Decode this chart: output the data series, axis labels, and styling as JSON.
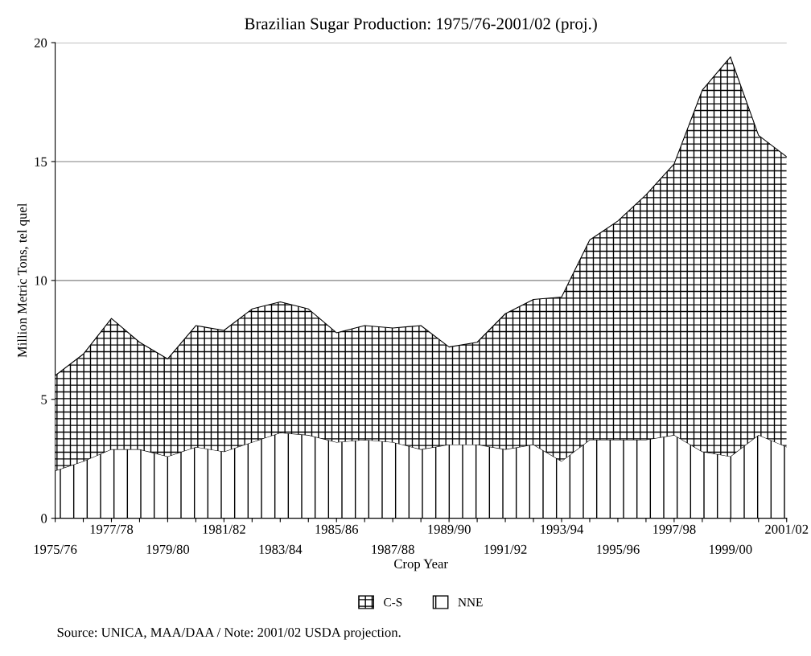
{
  "chart_data": {
    "type": "area",
    "stacked": true,
    "title": "Brazilian Sugar Production: 1975/76-2001/02 (proj.)",
    "xlabel": "Crop Year",
    "ylabel": "Million Metric Tons, tel quel",
    "categories": [
      "1975/76",
      null,
      "1977/78",
      null,
      "1979/80",
      null,
      "1981/82",
      null,
      "1983/84",
      null,
      "1985/86",
      null,
      "1987/88",
      null,
      "1989/90",
      null,
      "1991/92",
      null,
      "1993/94",
      null,
      "1995/96",
      null,
      "1997/98",
      null,
      "1999/00",
      null,
      "2001/02"
    ],
    "series": [
      {
        "name": "NNE",
        "color": "#000000",
        "values": [
          2.0,
          2.4,
          2.9,
          2.9,
          2.6,
          3.0,
          2.8,
          3.2,
          3.6,
          3.5,
          3.2,
          3.3,
          3.2,
          2.9,
          3.1,
          3.1,
          2.9,
          3.1,
          2.4,
          3.3,
          3.3,
          3.3,
          3.5,
          2.8,
          2.6,
          3.5,
          3.0
        ]
      },
      {
        "name": "C-S",
        "color": "#000000",
        "values": [
          4.0,
          4.5,
          5.5,
          4.5,
          4.1,
          5.1,
          5.1,
          5.6,
          5.5,
          5.3,
          4.6,
          4.8,
          4.8,
          5.2,
          4.1,
          4.3,
          5.7,
          6.1,
          6.9,
          8.4,
          9.2,
          10.3,
          11.4,
          15.2,
          16.8,
          12.6,
          12.2
        ]
      }
    ],
    "ylim": [
      0,
      20
    ],
    "yticks": [
      0,
      5,
      10,
      15,
      20
    ],
    "grid": "y",
    "legend": "bottom",
    "annotations": [
      "Source: UNICA, MAA/DAA / Note: 2001/02 USDA projection."
    ]
  }
}
